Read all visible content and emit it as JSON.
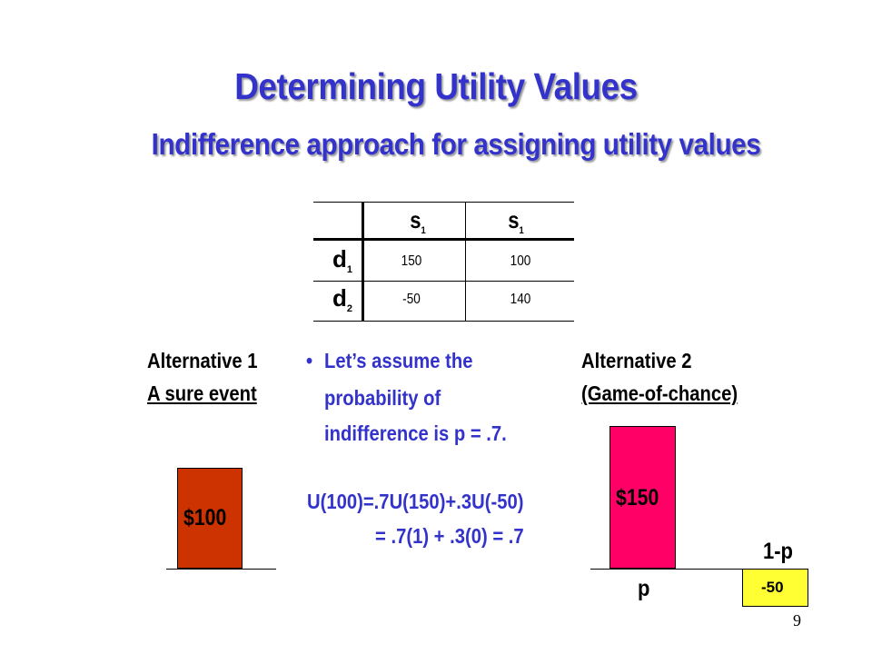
{
  "slide": {
    "title": "Determining Utility Values",
    "subtitle": "Indifference approach for assigning utility values",
    "page_number": "9"
  },
  "payoff_table": {
    "columns": [
      {
        "base": "s",
        "sub": "1"
      },
      {
        "base": "s",
        "sub": "1"
      }
    ],
    "rows": [
      {
        "base": "d",
        "sub": "1",
        "values": [
          "150",
          "100"
        ]
      },
      {
        "base": "d",
        "sub": "2",
        "values": [
          "-50",
          "140"
        ]
      }
    ]
  },
  "alternative1": {
    "line1": "Alternative 1",
    "line2": "A sure event",
    "bar_label": "$100",
    "bar_color": "#cc3300"
  },
  "explanation": {
    "bullet": "•",
    "line1": "Let’s assume the",
    "line2": "probability of",
    "line3": "indifference is p = .7.",
    "equation1": "U(100)=.7U(150)+.3U(-50)",
    "equation2": "= .7(1) + .3(0) = .7"
  },
  "alternative2": {
    "line1": "Alternative 2",
    "line2": "(Game-of-chance)",
    "win_bar_label": "$150",
    "win_bar_color": "#ff0066",
    "win_prob_label": "p",
    "lose_bar_label": "-50",
    "lose_bar_color": "#ffff33",
    "lose_prob_label": "1-p"
  }
}
